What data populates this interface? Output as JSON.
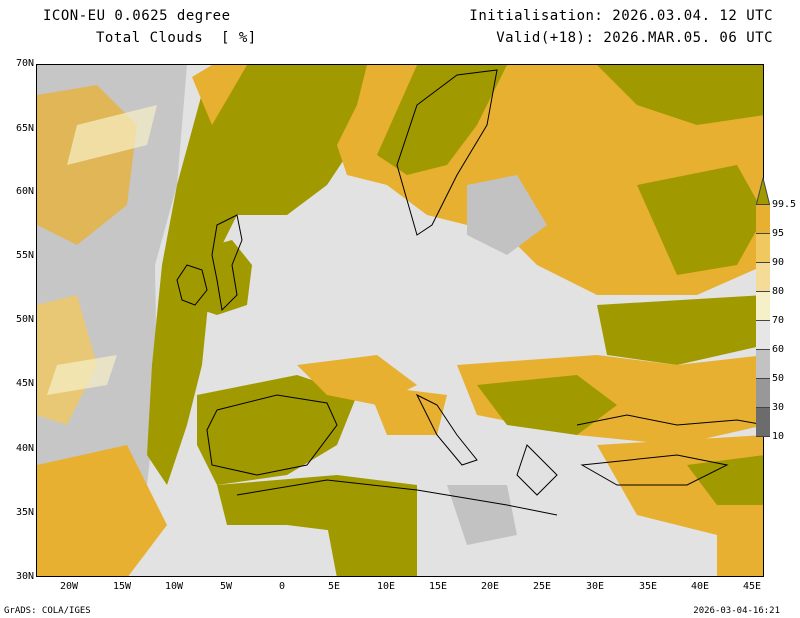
{
  "header": {
    "model": "ICON-EU 0.0625 degree",
    "parameter": "Total Clouds  [ %]",
    "initialisation": "Initialisation: 2026.03.04. 12 UTC",
    "valid": "Valid(+18): 2026.MAR.05. 06 UTC"
  },
  "map": {
    "lat_labels": [
      "70N",
      "65N",
      "60N",
      "55N",
      "50N",
      "45N",
      "40N",
      "35N",
      "30N"
    ],
    "lon_labels": [
      "20W",
      "15W",
      "10W",
      "5W",
      "0",
      "5E",
      "10E",
      "15E",
      "20E",
      "25E",
      "30E",
      "35E",
      "40E",
      "45E"
    ],
    "lon_range": [
      "25W",
      "45E"
    ],
    "lat_range": [
      "30N",
      "70N"
    ]
  },
  "colorbar": {
    "labels": [
      "99.5",
      "95",
      "90",
      "80",
      "70",
      "60",
      "50",
      "30",
      "10"
    ],
    "colors": [
      "#a09a00",
      "#e8b030",
      "#f0c860",
      "#f4dc98",
      "#f6f0c8",
      "#e6e6e6",
      "#c2c2c2",
      "#989898",
      "#6c6c6c"
    ]
  },
  "footer": {
    "left": "GrADS: COLA/IGES",
    "right": "2026-03-04-16:21"
  }
}
